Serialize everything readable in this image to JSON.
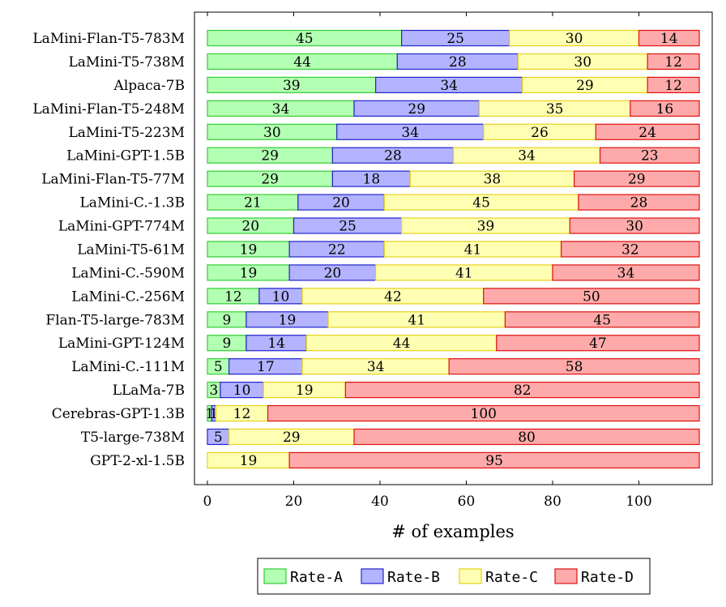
{
  "chart_data": {
    "type": "bar",
    "orientation": "horizontal",
    "stacked": true,
    "categories": [
      "LaMini-Flan-T5-783M",
      "LaMini-T5-738M",
      "Alpaca-7B",
      "LaMini-Flan-T5-248M",
      "LaMini-T5-223M",
      "LaMini-GPT-1.5B",
      "LaMini-Flan-T5-77M",
      "LaMini-C.-1.3B",
      "LaMini-GPT-774M",
      "LaMini-T5-61M",
      "LaMini-C.-590M",
      "LaMini-C.-256M",
      "Flan-T5-large-783M",
      "LaMini-GPT-124M",
      "LaMini-C.-111M",
      "LLaMa-7B",
      "Cerebras-GPT-1.3B",
      "T5-large-738M",
      "GPT-2-xl-1.5B"
    ],
    "series": [
      {
        "name": "Rate-A",
        "fill": "#b3ffb3",
        "stroke": "#33cc33",
        "values": [
          45,
          44,
          39,
          34,
          30,
          29,
          29,
          21,
          20,
          19,
          19,
          12,
          9,
          9,
          5,
          3,
          1,
          0,
          0
        ]
      },
      {
        "name": "Rate-B",
        "fill": "#b3b3ff",
        "stroke": "#2222cc",
        "values": [
          25,
          28,
          34,
          29,
          34,
          28,
          18,
          20,
          25,
          22,
          20,
          10,
          19,
          14,
          17,
          10,
          1,
          5,
          0
        ]
      },
      {
        "name": "Rate-C",
        "fill": "#ffffb3",
        "stroke": "#e6d21a",
        "values": [
          30,
          30,
          29,
          35,
          26,
          34,
          38,
          45,
          39,
          41,
          41,
          42,
          41,
          44,
          34,
          19,
          12,
          29,
          19
        ]
      },
      {
        "name": "Rate-D",
        "fill": "#ffaaaa",
        "stroke": "#dd1111",
        "values": [
          14,
          12,
          12,
          16,
          24,
          23,
          29,
          28,
          30,
          32,
          34,
          50,
          45,
          47,
          58,
          82,
          100,
          80,
          95
        ]
      }
    ],
    "xlabel": "# of examples",
    "ylabel": "",
    "xlim": [
      -3,
      117
    ],
    "xticks": [
      0,
      20,
      40,
      60,
      80,
      100
    ],
    "legend_position": "bottom-center",
    "grid": false
  }
}
